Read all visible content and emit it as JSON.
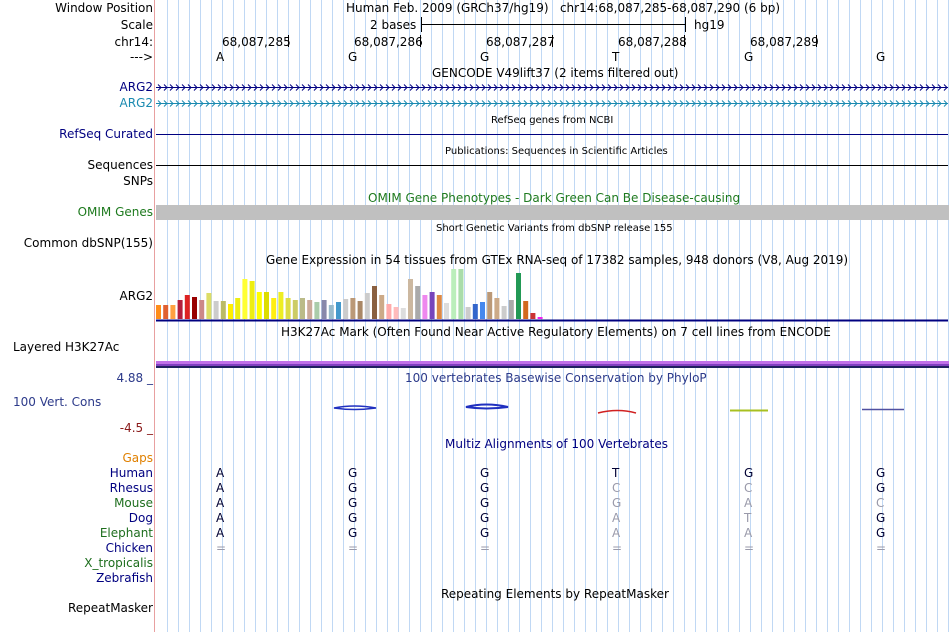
{
  "colors": {
    "grid": "#c0d8f4",
    "sidebar_line": "#e8a0a0",
    "navy": "#000080",
    "teal": "#1a8ab0",
    "omim_green": "#1e7a1e",
    "cons_navy": "#2c3a8a",
    "cons_red": "#8a1a1a",
    "gaps_orange": "#e08000",
    "species_green": "#1e6e1e",
    "h3k_purple": "#b060e0"
  },
  "header": {
    "window_position_label": "Window Position",
    "window_position_value": "Human Feb. 2009 (GRCh37/hg19)   chr14:68,087,285-68,087,290 (6 bp)",
    "scale_label": "Scale",
    "scale_value": "2 bases",
    "scale_assembly": "hg19",
    "chrom_label": "chr14:",
    "strand_label": "--->",
    "positions": [
      "68,087,285",
      "68,087,286",
      "68,087,287",
      "68,087,288",
      "68,087,289"
    ],
    "bases": [
      "A",
      "G",
      "G",
      "T",
      "G",
      "G"
    ]
  },
  "tracks": {
    "gencode": {
      "title": "GENCODE V49lift37 (2 items filtered out)",
      "items": [
        {
          "label": "ARG2",
          "color": "#000080"
        },
        {
          "label": "ARG2",
          "color": "#1a8ab0"
        }
      ]
    },
    "refseq": {
      "label": "RefSeq Curated",
      "title": "RefSeq genes from NCBI"
    },
    "publications": {
      "label": "Sequences",
      "title": "Publications: Sequences in Scientific Articles"
    },
    "snps": {
      "label": "SNPs"
    },
    "omim": {
      "label": "OMIM Genes",
      "title": "OMIM Gene Phenotypes - Dark Green Can Be Disease-causing"
    },
    "dbsnp": {
      "label": "Common dbSNP(155)",
      "title": "Short Genetic Variants from dbSNP release 155"
    },
    "gtex": {
      "label": "ARG2",
      "title": "Gene Expression in 54 tissues from GTEx RNA-seq of 17382 samples, 948 donors (V8, Aug 2019)"
    },
    "h3k27ac": {
      "label": "Layered H3K27Ac",
      "title": "H3K27Ac Mark (Often Found Near Active Regulatory Elements) on 7 cell lines from ENCODE"
    },
    "phylop": {
      "label": "100 Vert. Cons",
      "max_label": "4.88 _",
      "min_label": "-4.5 _",
      "title": "100 vertebrates Basewise Conservation by PhyloP"
    },
    "multiz": {
      "title": "Multiz Alignments of 100 Vertebrates",
      "gaps_label": "Gaps",
      "species": [
        {
          "name": "Human",
          "bases": [
            "A",
            "G",
            "G",
            "T",
            "G",
            "G"
          ]
        },
        {
          "name": "Rhesus",
          "bases": [
            "A",
            "G",
            "G",
            "C",
            "C",
            "G"
          ]
        },
        {
          "name": "Mouse",
          "bases": [
            "A",
            "G",
            "G",
            "G",
            "A",
            "C"
          ]
        },
        {
          "name": "Dog",
          "bases": [
            "A",
            "G",
            "G",
            "A",
            "T",
            "G"
          ]
        },
        {
          "name": "Elephant",
          "bases": [
            "A",
            "G",
            "G",
            "A",
            "A",
            "G"
          ]
        },
        {
          "name": "Chicken",
          "bases": [
            "=",
            "=",
            "=",
            "=",
            "=",
            "="
          ]
        },
        {
          "name": "X_tropicalis",
          "bases": [
            "",
            "",
            "",
            "",
            "",
            ""
          ]
        },
        {
          "name": "Zebrafish",
          "bases": [
            "",
            "",
            "",
            "",
            "",
            ""
          ]
        }
      ]
    },
    "repeatmasker": {
      "label": "RepeatMasker",
      "title": "Repeating Elements by RepeatMasker"
    }
  },
  "chart_data": {
    "type": "bar",
    "title": "Gene Expression in 54 tissues from GTEx RNA-seq of 17382 samples, 948 donors (V8, Aug 2019)",
    "xlabel": "",
    "ylabel": "",
    "ylim": [
      0,
      52
    ],
    "values": [
      14,
      14,
      14,
      19,
      24,
      22,
      19,
      26,
      18,
      18,
      15,
      21,
      40,
      38,
      27,
      27,
      21,
      27,
      21,
      19,
      21,
      19,
      17,
      19,
      14,
      17,
      20,
      21,
      18,
      26,
      33,
      24,
      15,
      12,
      11,
      40,
      33,
      24,
      27,
      24,
      16,
      50,
      50,
      12,
      15,
      17,
      27,
      21,
      13,
      19,
      46,
      18,
      6,
      2
    ],
    "colors": [
      "#ff8c1a",
      "#e06030",
      "#ffa040",
      "#b41e3c",
      "#dd2222",
      "#990000",
      "#cc8888",
      "#dddd66",
      "#cccccc",
      "#bbbb66",
      "#ffee00",
      "#eeee11",
      "#ffff33",
      "#eeee11",
      "#ffff00",
      "#dddd00",
      "#ffee11",
      "#eeee22",
      "#dddd44",
      "#cccc66",
      "#bbbb88",
      "#ccaa99",
      "#aaccaa",
      "#8888aa",
      "#99bbcc",
      "#4499cc",
      "#cccccc",
      "#bb9977",
      "#aa8866",
      "#cccccc",
      "#8a6040",
      "#ccaa88",
      "#ffaaaa",
      "#ffbbbb",
      "#dddddd",
      "#ccb8a0",
      "#aaaaaa",
      "#ee88ee",
      "#7744bb",
      "#dd8844",
      "#dddddd",
      "#bbeebb",
      "#aaddaa",
      "#cccccc",
      "#3366cc",
      "#4488ee",
      "#bb9977",
      "#ccaa88",
      "#cccccc",
      "#aaaaaa",
      "#229955",
      "#d2691e",
      "#cc3333",
      "#ee22ee"
    ]
  }
}
